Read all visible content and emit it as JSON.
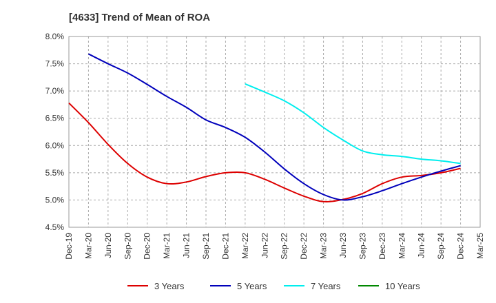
{
  "chart_data": {
    "type": "line",
    "title": "[4633]  Trend of Mean of ROA",
    "xlabel": "",
    "ylabel": "",
    "ylim": [
      4.5,
      8.0
    ],
    "yticks": [
      4.5,
      5.0,
      5.5,
      6.0,
      6.5,
      7.0,
      7.5,
      8.0
    ],
    "ytick_labels": [
      "4.5%",
      "5.0%",
      "5.5%",
      "6.0%",
      "6.5%",
      "7.0%",
      "7.5%",
      "8.0%"
    ],
    "categories": [
      "Dec-19",
      "Mar-20",
      "Jun-20",
      "Sep-20",
      "Dec-20",
      "Mar-21",
      "Jun-21",
      "Sep-21",
      "Dec-21",
      "Mar-22",
      "Jun-22",
      "Sep-22",
      "Dec-22",
      "Mar-23",
      "Jun-23",
      "Sep-23",
      "Dec-23",
      "Mar-24",
      "Jun-24",
      "Sep-24",
      "Dec-24",
      "Mar-25"
    ],
    "grid": true,
    "legend_position": "bottom",
    "series": [
      {
        "name": "3 Years",
        "color": "#dd0000",
        "values": [
          6.78,
          6.42,
          6.02,
          5.67,
          5.42,
          5.3,
          5.33,
          5.43,
          5.5,
          5.5,
          5.38,
          5.22,
          5.07,
          4.97,
          5.01,
          5.12,
          5.3,
          5.42,
          5.45,
          5.5,
          5.58,
          null
        ]
      },
      {
        "name": "5 Years",
        "color": "#0000bb",
        "values": [
          null,
          7.68,
          7.5,
          7.33,
          7.12,
          6.9,
          6.7,
          6.47,
          6.33,
          6.15,
          5.88,
          5.57,
          5.3,
          5.1,
          5.0,
          5.06,
          5.17,
          5.3,
          5.42,
          5.53,
          5.63,
          null
        ]
      },
      {
        "name": "7 Years",
        "color": "#00eeee",
        "values": [
          null,
          null,
          null,
          null,
          null,
          null,
          null,
          null,
          null,
          7.13,
          6.98,
          6.82,
          6.6,
          6.33,
          6.1,
          5.9,
          5.83,
          5.8,
          5.75,
          5.72,
          5.67,
          null
        ]
      },
      {
        "name": "10 Years",
        "color": "#008800",
        "values": [
          null,
          null,
          null,
          null,
          null,
          null,
          null,
          null,
          null,
          null,
          null,
          null,
          null,
          null,
          null,
          null,
          null,
          null,
          null,
          null,
          null,
          null
        ]
      }
    ]
  }
}
